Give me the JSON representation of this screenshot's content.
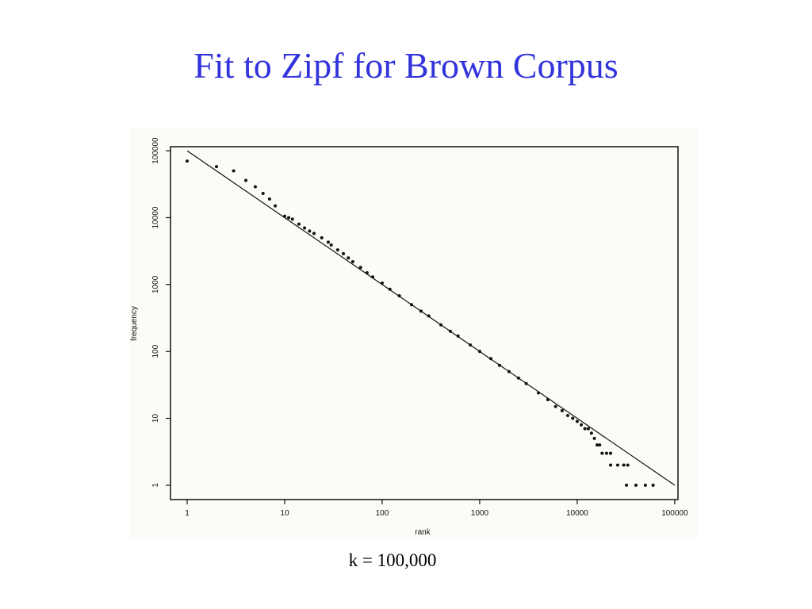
{
  "chart_data": {
    "type": "scatter",
    "title": "Fit to Zipf for Brown Corpus",
    "x_label": "rank",
    "y_label": "frequency",
    "annotation": "k = 100,000",
    "x_log": true,
    "y_log": true,
    "xlim": [
      0.675,
      108000
    ],
    "ylim": [
      0.61,
      115000
    ],
    "xticks": [
      1,
      10,
      100,
      1000,
      10000,
      100000
    ],
    "yticks": [
      1,
      10,
      100,
      1000,
      10000,
      100000
    ],
    "color": "#111111",
    "points": {
      "x": [
        1,
        2,
        3,
        4,
        5,
        6,
        7,
        8,
        10,
        11,
        12,
        14,
        16,
        18,
        20,
        24,
        28,
        30,
        35,
        40,
        45,
        50,
        60,
        70,
        80,
        100,
        120,
        150,
        200,
        250,
        300,
        400,
        500,
        600,
        800,
        1000,
        1300,
        1600,
        2000,
        2500,
        3000,
        4000,
        5000,
        6000,
        7000,
        8000,
        9000,
        10000,
        11000,
        12000,
        13000,
        14000,
        15000,
        16000,
        17000,
        18000,
        20000,
        22000,
        22000,
        26000,
        30000,
        33000,
        32000,
        40000,
        50000,
        60000
      ],
      "y": [
        70000,
        58000,
        50000,
        36000,
        29000,
        23000,
        19000,
        15000,
        10500,
        10000,
        9500,
        8000,
        7000,
        6300,
        5800,
        5000,
        4300,
        3900,
        3300,
        2900,
        2500,
        2200,
        1800,
        1500,
        1300,
        1050,
        850,
        680,
        500,
        400,
        340,
        250,
        200,
        170,
        125,
        100,
        78,
        62,
        50,
        40,
        33,
        24,
        19,
        15,
        13,
        11,
        10,
        9,
        8,
        7,
        7,
        6,
        5,
        4,
        4,
        3,
        3,
        3,
        2,
        2,
        2,
        2,
        1,
        1,
        1,
        1
      ]
    },
    "fit_line": {
      "x": [
        1,
        100000
      ],
      "y": [
        100000,
        1
      ]
    }
  }
}
